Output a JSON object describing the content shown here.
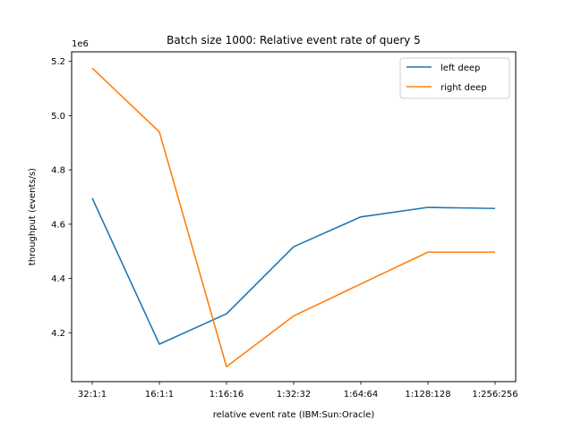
{
  "chart_data": {
    "type": "line",
    "title": "Batch size 1000: Relative event rate of query 5",
    "xlabel": "relative event rate (IBM:Sun:Oracle)",
    "ylabel": "throughput (events/s)",
    "y_offset_label": "1e6",
    "categories": [
      "32:1:1",
      "16:1:1",
      "1:16:16",
      "1:32:32",
      "1:64:64",
      "1:128:128",
      "1:256:256"
    ],
    "yticks": [
      4.2,
      4.4,
      4.6,
      4.8,
      5.0,
      5.2
    ],
    "ytick_labels": [
      "4.2",
      "4.4",
      "4.6",
      "4.8",
      "5.0",
      "5.2"
    ],
    "ylim": [
      4.02,
      5.235
    ],
    "grid": false,
    "legend_position": "top-right",
    "series": [
      {
        "name": "left deep",
        "color": "#1f77b4",
        "values": [
          4.696,
          4.158,
          4.27,
          4.517,
          4.627,
          4.662,
          4.658
        ]
      },
      {
        "name": "right deep",
        "color": "#ff7f0e",
        "values": [
          5.175,
          4.94,
          4.075,
          4.262,
          4.38,
          4.497,
          4.497
        ]
      }
    ]
  }
}
